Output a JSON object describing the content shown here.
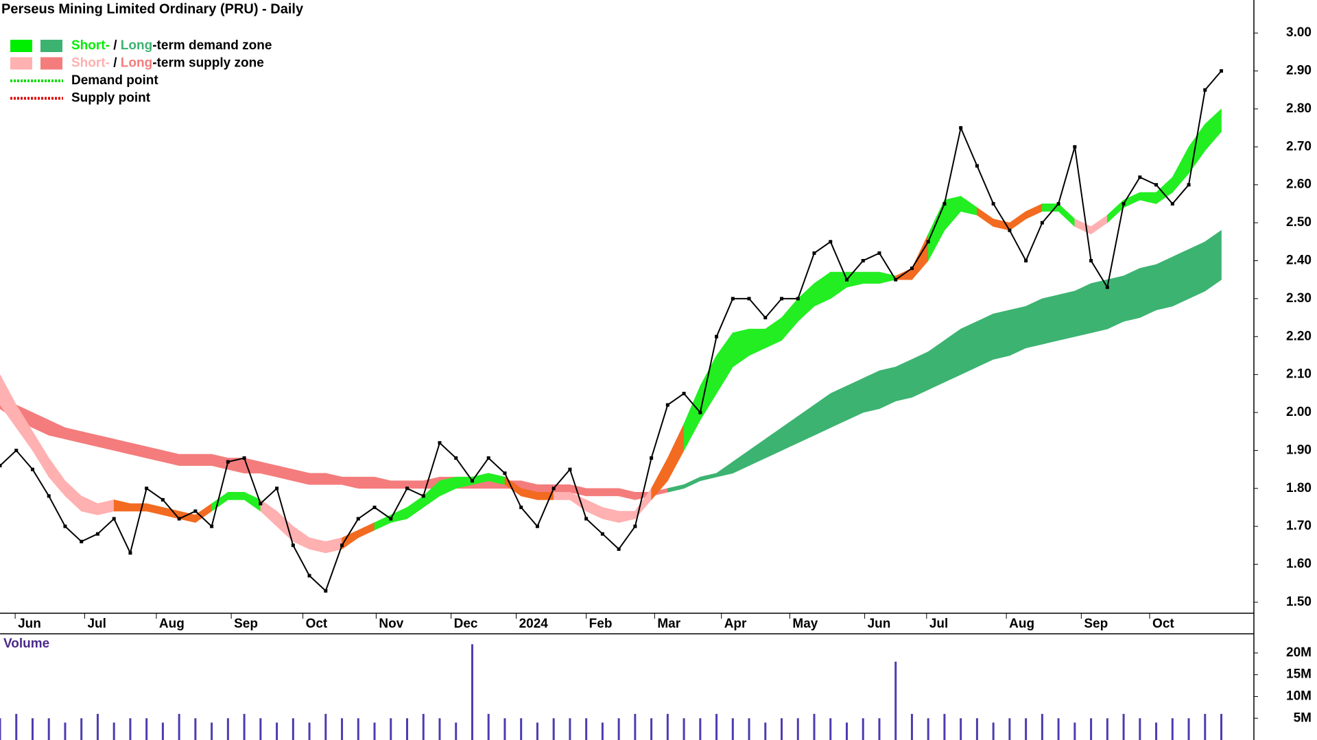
{
  "chart_data": [
    {
      "type": "line",
      "title": "Perseus Mining Limited Ordinary (PRU) - Daily",
      "legend": [
        {
          "swatches": [
            "#00ee00",
            "#3cb371"
          ],
          "parts": [
            {
              "text": "Short-",
              "color": "#00ee00"
            },
            {
              "text": " / ",
              "color": "#000000"
            },
            {
              "text": "Long",
              "color": "#3cb371"
            },
            {
              "text": "-term demand zone",
              "color": "#000000"
            }
          ]
        },
        {
          "swatches": [
            "#ffb0b0",
            "#f47c7c"
          ],
          "parts": [
            {
              "text": "Short-",
              "color": "#ffb0b0"
            },
            {
              "text": " / ",
              "color": "#000000"
            },
            {
              "text": "Long",
              "color": "#f47c7c"
            },
            {
              "text": "-term supply zone",
              "color": "#000000"
            }
          ]
        },
        {
          "line": "#00dd00",
          "parts": [
            {
              "text": "Demand point",
              "color": "#000000"
            }
          ]
        },
        {
          "line": "#dd0000",
          "parts": [
            {
              "text": "Supply point",
              "color": "#000000"
            }
          ]
        }
      ],
      "x": [
        0,
        1,
        2,
        3,
        4,
        5,
        6,
        7,
        8,
        9,
        10,
        11,
        12,
        13,
        14,
        15,
        16,
        17,
        18,
        19,
        20,
        21,
        22,
        23,
        24,
        25,
        26,
        27,
        28,
        29,
        30,
        31,
        32,
        33,
        34,
        35,
        36,
        37,
        38,
        39,
        40,
        41,
        42,
        43,
        44,
        45,
        46,
        47,
        48,
        49,
        50,
        51,
        52,
        53,
        54,
        55,
        56,
        57,
        58,
        59,
        60,
        61,
        62,
        63,
        64,
        65,
        66,
        67,
        68,
        69,
        70,
        71,
        72,
        73,
        74,
        75
      ],
      "values": [
        1.86,
        1.9,
        1.85,
        1.78,
        1.7,
        1.66,
        1.68,
        1.72,
        1.63,
        1.8,
        1.77,
        1.72,
        1.74,
        1.7,
        1.87,
        1.88,
        1.76,
        1.8,
        1.65,
        1.57,
        1.53,
        1.65,
        1.72,
        1.75,
        1.72,
        1.8,
        1.78,
        1.92,
        1.88,
        1.82,
        1.88,
        1.84,
        1.75,
        1.7,
        1.8,
        1.85,
        1.72,
        1.68,
        1.64,
        1.7,
        1.88,
        2.02,
        2.05,
        2.0,
        2.2,
        2.3,
        2.3,
        2.25,
        2.3,
        2.3,
        2.42,
        2.45,
        2.35,
        2.4,
        2.42,
        2.35,
        2.38,
        2.45,
        2.55,
        2.75,
        2.65,
        2.55,
        2.48,
        2.4,
        2.5,
        2.55,
        2.7,
        2.4,
        2.33,
        2.55,
        2.62,
        2.6,
        2.55,
        2.6,
        2.85,
        2.9
      ],
      "color": "#000000",
      "bands": [
        {
          "upper": [
            2.04,
            2.02,
            2.0,
            1.98,
            1.96,
            1.95,
            1.94,
            1.93,
            1.92,
            1.91,
            1.9,
            1.89,
            1.89,
            1.89,
            1.88,
            1.88,
            1.87,
            1.86,
            1.85,
            1.84,
            1.84,
            1.83,
            1.83,
            1.83,
            1.82,
            1.82,
            1.82,
            1.83,
            1.83,
            1.83,
            1.83,
            1.82,
            1.82,
            1.81,
            1.81,
            1.81,
            1.8,
            1.8,
            1.8,
            1.79,
            1.79,
            1.8,
            1.81,
            1.83,
            1.84,
            1.87,
            1.9,
            1.93,
            1.96,
            1.99,
            2.02,
            2.05,
            2.07,
            2.09,
            2.11,
            2.12,
            2.14,
            2.16,
            2.19,
            2.22,
            2.24,
            2.26,
            2.27,
            2.28,
            2.3,
            2.31,
            2.32,
            2.34,
            2.35,
            2.36,
            2.38,
            2.39,
            2.41,
            2.43,
            2.45,
            2.48
          ],
          "lower": [
            2.01,
            1.98,
            1.96,
            1.94,
            1.93,
            1.92,
            1.91,
            1.9,
            1.89,
            1.88,
            1.87,
            1.86,
            1.86,
            1.86,
            1.85,
            1.84,
            1.84,
            1.83,
            1.82,
            1.81,
            1.81,
            1.81,
            1.8,
            1.8,
            1.8,
            1.8,
            1.8,
            1.8,
            1.8,
            1.8,
            1.8,
            1.8,
            1.8,
            1.79,
            1.79,
            1.79,
            1.78,
            1.78,
            1.78,
            1.77,
            1.78,
            1.79,
            1.8,
            1.82,
            1.83,
            1.84,
            1.86,
            1.88,
            1.9,
            1.92,
            1.94,
            1.96,
            1.98,
            2.0,
            2.01,
            2.03,
            2.04,
            2.06,
            2.08,
            2.1,
            2.12,
            2.14,
            2.15,
            2.17,
            2.18,
            2.19,
            2.2,
            2.21,
            2.22,
            2.24,
            2.25,
            2.27,
            2.28,
            2.3,
            2.32,
            2.35
          ],
          "colors": [
            "#f47c7c",
            "#f47c7c",
            "#f47c7c",
            "#f47c7c",
            "#f47c7c",
            "#f47c7c",
            "#f47c7c",
            "#f47c7c",
            "#f47c7c",
            "#f47c7c",
            "#f47c7c",
            "#f47c7c",
            "#f47c7c",
            "#f47c7c",
            "#f47c7c",
            "#f47c7c",
            "#f47c7c",
            "#f47c7c",
            "#f47c7c",
            "#f47c7c",
            "#f47c7c",
            "#f47c7c",
            "#f47c7c",
            "#f47c7c",
            "#f47c7c",
            "#f47c7c",
            "#f47c7c",
            "#f47c7c",
            "#f47c7c",
            "#f47c7c",
            "#f47c7c",
            "#f47c7c",
            "#f47c7c",
            "#f47c7c",
            "#f47c7c",
            "#f47c7c",
            "#f47c7c",
            "#f47c7c",
            "#f47c7c",
            "#f47c7c",
            "#f47c7c",
            "#3cb371",
            "#3cb371",
            "#3cb371",
            "#3cb371",
            "#3cb371",
            "#3cb371",
            "#3cb371",
            "#3cb371",
            "#3cb371",
            "#3cb371",
            "#3cb371",
            "#3cb371",
            "#3cb371",
            "#3cb371",
            "#3cb371",
            "#3cb371",
            "#3cb371",
            "#3cb371",
            "#3cb371",
            "#3cb371",
            "#3cb371",
            "#3cb371",
            "#3cb371",
            "#3cb371",
            "#3cb371",
            "#3cb371",
            "#3cb371",
            "#3cb371",
            "#3cb371",
            "#3cb371",
            "#3cb371",
            "#3cb371",
            "#3cb371",
            "#3cb371",
            "#3cb371"
          ]
        },
        {
          "upper": [
            2.1,
            2.02,
            1.95,
            1.88,
            1.82,
            1.78,
            1.76,
            1.77,
            1.76,
            1.76,
            1.75,
            1.74,
            1.73,
            1.76,
            1.79,
            1.79,
            1.77,
            1.74,
            1.7,
            1.67,
            1.66,
            1.67,
            1.69,
            1.71,
            1.73,
            1.75,
            1.78,
            1.82,
            1.83,
            1.83,
            1.84,
            1.83,
            1.8,
            1.79,
            1.79,
            1.79,
            1.77,
            1.75,
            1.74,
            1.74,
            1.8,
            1.88,
            1.97,
            2.07,
            2.15,
            2.21,
            2.22,
            2.22,
            2.25,
            2.3,
            2.34,
            2.37,
            2.37,
            2.37,
            2.37,
            2.36,
            2.38,
            2.47,
            2.56,
            2.57,
            2.54,
            2.51,
            2.5,
            2.53,
            2.55,
            2.55,
            2.51,
            2.49,
            2.52,
            2.56,
            2.58,
            2.58,
            2.62,
            2.7,
            2.76,
            2.8
          ],
          "lower": [
            2.02,
            1.96,
            1.9,
            1.83,
            1.78,
            1.74,
            1.73,
            1.74,
            1.74,
            1.74,
            1.73,
            1.72,
            1.71,
            1.74,
            1.77,
            1.77,
            1.74,
            1.7,
            1.66,
            1.64,
            1.63,
            1.64,
            1.67,
            1.69,
            1.71,
            1.72,
            1.75,
            1.78,
            1.8,
            1.81,
            1.82,
            1.81,
            1.78,
            1.77,
            1.77,
            1.77,
            1.74,
            1.72,
            1.71,
            1.72,
            1.77,
            1.82,
            1.9,
            1.98,
            2.05,
            2.12,
            2.15,
            2.17,
            2.19,
            2.24,
            2.28,
            2.3,
            2.33,
            2.34,
            2.34,
            2.35,
            2.35,
            2.4,
            2.48,
            2.53,
            2.52,
            2.49,
            2.48,
            2.51,
            2.53,
            2.53,
            2.49,
            2.47,
            2.5,
            2.54,
            2.56,
            2.55,
            2.58,
            2.63,
            2.69,
            2.74
          ],
          "colors": [
            "#ffb0b0",
            "#ffb0b0",
            "#ffb0b0",
            "#ffb0b0",
            "#ffb0b0",
            "#ffb0b0",
            "#ffb0b0",
            "#f26b21",
            "#f26b21",
            "#f26b21",
            "#f26b21",
            "#f26b21",
            "#f26b21",
            "#22ee22",
            "#22ee22",
            "#22ee22",
            "#ffb0b0",
            "#ffb0b0",
            "#ffb0b0",
            "#ffb0b0",
            "#ffb0b0",
            "#f26b21",
            "#f26b21",
            "#22ee22",
            "#22ee22",
            "#22ee22",
            "#22ee22",
            "#22ee22",
            "#22ee22",
            "#22ee22",
            "#22ee22",
            "#f26b21",
            "#f26b21",
            "#f26b21",
            "#ffb0b0",
            "#ffb0b0",
            "#ffb0b0",
            "#ffb0b0",
            "#ffb0b0",
            "#ffb0b0",
            "#f26b21",
            "#f26b21",
            "#22ee22",
            "#22ee22",
            "#22ee22",
            "#22ee22",
            "#22ee22",
            "#22ee22",
            "#22ee22",
            "#22ee22",
            "#22ee22",
            "#22ee22",
            "#22ee22",
            "#22ee22",
            "#22ee22",
            "#f26b21",
            "#f26b21",
            "#22ee22",
            "#22ee22",
            "#22ee22",
            "#f26b21",
            "#f26b21",
            "#f26b21",
            "#f26b21",
            "#22ee22",
            "#22ee22",
            "#ffb0b0",
            "#ffb0b0",
            "#22ee22",
            "#22ee22",
            "#22ee22",
            "#22ee22",
            "#22ee22",
            "#22ee22",
            "#22ee22",
            "#22ee22"
          ]
        }
      ],
      "xlim": [
        0,
        77
      ],
      "xticks": [
        {
          "value": 0.93,
          "label": "Jun"
        },
        {
          "value": 5.2,
          "label": "Jul"
        },
        {
          "value": 9.6,
          "label": "Aug"
        },
        {
          "value": 14.2,
          "label": "Sep"
        },
        {
          "value": 18.6,
          "label": "Oct"
        },
        {
          "value": 23.1,
          "label": "Nov"
        },
        {
          "value": 27.7,
          "label": "Dec"
        },
        {
          "value": 31.7,
          "label": "2024"
        },
        {
          "value": 36.0,
          "label": "Feb"
        },
        {
          "value": 40.2,
          "label": "Mar"
        },
        {
          "value": 44.3,
          "label": "Apr"
        },
        {
          "value": 48.5,
          "label": "May"
        },
        {
          "value": 53.1,
          "label": "Jun"
        },
        {
          "value": 56.9,
          "label": "Jul"
        },
        {
          "value": 61.8,
          "label": "Aug"
        },
        {
          "value": 66.4,
          "label": "Sep"
        },
        {
          "value": 70.6,
          "label": "Oct"
        }
      ],
      "ylim": [
        1.471,
        3.087
      ],
      "yticks": [
        {
          "value": 1.5,
          "label": "1.50"
        },
        {
          "value": 1.6,
          "label": "1.60"
        },
        {
          "value": 1.7,
          "label": "1.70"
        },
        {
          "value": 1.8,
          "label": "1.80"
        },
        {
          "value": 1.9,
          "label": "1.90"
        },
        {
          "value": 2.0,
          "label": "2.00"
        },
        {
          "value": 2.1,
          "label": "2.10"
        },
        {
          "value": 2.2,
          "label": "2.20"
        },
        {
          "value": 2.3,
          "label": "2.30"
        },
        {
          "value": 2.4,
          "label": "2.40"
        },
        {
          "value": 2.5,
          "label": "2.50"
        },
        {
          "value": 2.6,
          "label": "2.60"
        },
        {
          "value": 2.7,
          "label": "2.70"
        },
        {
          "value": 2.8,
          "label": "2.80"
        },
        {
          "value": 2.9,
          "label": "2.90"
        },
        {
          "value": 3.0,
          "label": "3.00"
        }
      ]
    },
    {
      "type": "bar",
      "title": "Volume",
      "x": [
        0,
        1,
        2,
        3,
        4,
        5,
        6,
        7,
        8,
        9,
        10,
        11,
        12,
        13,
        14,
        15,
        16,
        17,
        18,
        19,
        20,
        21,
        22,
        23,
        24,
        25,
        26,
        27,
        28,
        29,
        30,
        31,
        32,
        33,
        34,
        35,
        36,
        37,
        38,
        39,
        40,
        41,
        42,
        43,
        44,
        45,
        46,
        47,
        48,
        49,
        50,
        51,
        52,
        53,
        54,
        55,
        56,
        57,
        58,
        59,
        60,
        61,
        62,
        63,
        64,
        65,
        66,
        67,
        68,
        69,
        70,
        71,
        72,
        73,
        74,
        75
      ],
      "values": [
        5,
        6,
        5,
        5,
        4,
        5,
        6,
        4,
        5,
        5,
        4,
        6,
        5,
        4,
        5,
        6,
        5,
        4,
        5,
        4,
        6,
        5,
        5,
        4,
        5,
        5,
        6,
        5,
        4,
        22,
        6,
        5,
        5,
        4,
        5,
        5,
        5,
        4,
        5,
        6,
        5,
        6,
        5,
        5,
        6,
        5,
        5,
        4,
        5,
        5,
        6,
        5,
        4,
        5,
        5,
        18,
        6,
        5,
        6,
        5,
        5,
        4,
        5,
        5,
        6,
        5,
        4,
        5,
        5,
        6,
        5,
        4,
        5,
        5,
        6,
        6
      ],
      "color": "#4b3cb0",
      "xlim": [
        0,
        77
      ],
      "ylim": [
        0,
        24.4
      ],
      "yticks": [
        {
          "value": 5,
          "label": "5M"
        },
        {
          "value": 10,
          "label": "10M"
        },
        {
          "value": 15,
          "label": "15M"
        },
        {
          "value": 20,
          "label": "20M"
        }
      ]
    }
  ]
}
